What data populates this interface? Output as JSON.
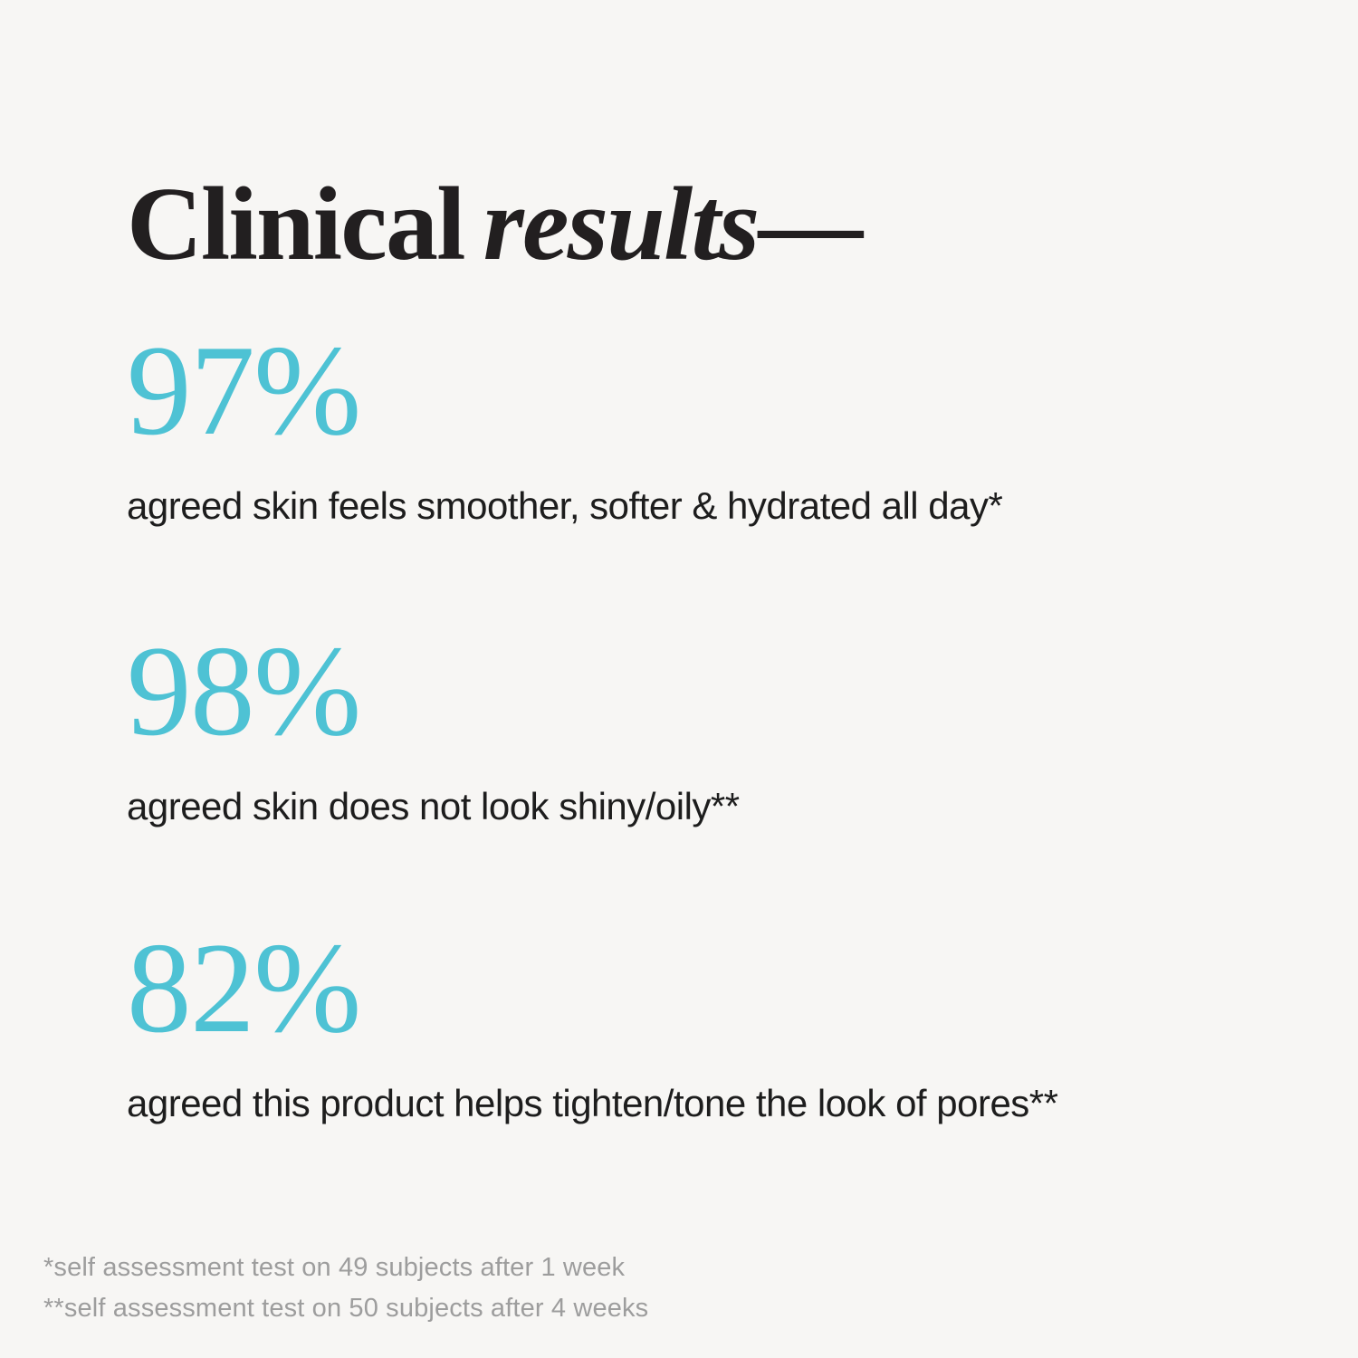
{
  "page": {
    "background_color": "#f7f6f4",
    "accent_color": "#4ec2d4",
    "title_color": "#221f20",
    "text_color": "#1d1d1d",
    "footnote_color": "#9d9d9d"
  },
  "title": {
    "regular": "Clinical",
    "italic": "results",
    "dash": "—"
  },
  "stats": [
    {
      "value": "97%",
      "description": "agreed skin feels smoother, softer & hydrated all day*"
    },
    {
      "value": "98%",
      "description": "agreed skin does not look shiny/oily**"
    },
    {
      "value": "82%",
      "description": "agreed this product helps tighten/tone the look of pores**"
    }
  ],
  "footnotes": [
    "*self assessment test on 49 subjects after 1 week",
    "**self assessment test on 50 subjects after 4 weeks"
  ]
}
